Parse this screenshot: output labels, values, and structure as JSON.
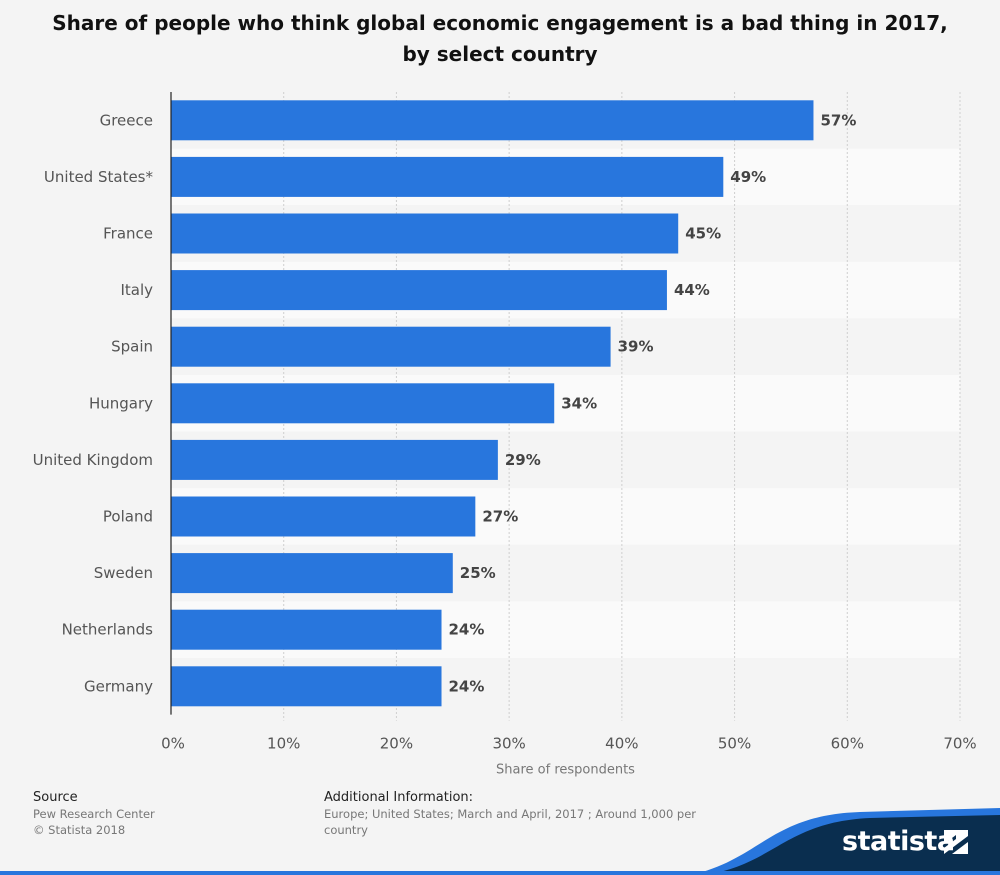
{
  "chart_data": {
    "type": "bar",
    "orientation": "horizontal",
    "title_line1": "Share of people who think global economic engagement is a bad thing in 2017,",
    "title_line2": "by select country",
    "categories": [
      "Greece",
      "United States*",
      "France",
      "Italy",
      "Spain",
      "Hungary",
      "United Kingdom",
      "Poland",
      "Sweden",
      "Netherlands",
      "Germany"
    ],
    "values": [
      57,
      49,
      45,
      44,
      39,
      34,
      29,
      27,
      25,
      24,
      24
    ],
    "value_labels": [
      "57%",
      "49%",
      "45%",
      "44%",
      "39%",
      "34%",
      "29%",
      "27%",
      "25%",
      "24%",
      "24%"
    ],
    "xlim": [
      0,
      70
    ],
    "x_ticks": [
      0,
      10,
      20,
      30,
      40,
      50,
      60,
      70
    ],
    "x_tick_labels": [
      "0%",
      "10%",
      "20%",
      "30%",
      "40%",
      "50%",
      "60%",
      "70%"
    ],
    "xlabel": "Share of respondents",
    "ylabel": "",
    "grid": true,
    "bar_color": "#2876dd"
  },
  "footer": {
    "source_label": "Source",
    "source_lines": [
      "Pew Research Center",
      "© Statista 2018"
    ],
    "additional_label": "Additional Information:",
    "additional_lines": [
      "Europe; United States; March and April, 2017 ; Around 1,000 per",
      "country"
    ]
  },
  "brand": {
    "logo_text": "statista",
    "logo_icon": "statista-flag-icon",
    "wave_color": "#0a2e4f",
    "accent_color": "#2876dd"
  }
}
